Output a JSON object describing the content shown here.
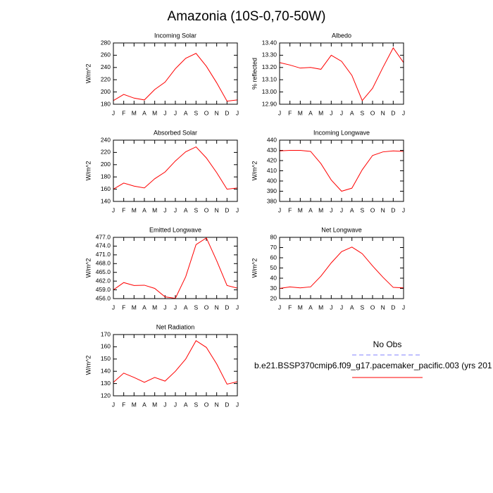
{
  "title": "Amazonia (10S-0,70-50W)",
  "legend": [
    {
      "label": "No Obs",
      "color": "#8080ff",
      "dashed": true
    },
    {
      "label": "b.e21.BSSP370cmip6.f09_g17.pacemaker_pacific.003 (yrs 201",
      "color": "#ff0000",
      "dashed": false
    }
  ],
  "chart_data": [
    {
      "type": "line",
      "title": "Incoming Solar",
      "ylabel": "W/m^2",
      "color": "#ff0000",
      "categories": [
        "J",
        "F",
        "M",
        "A",
        "M",
        "J",
        "J",
        "A",
        "S",
        "O",
        "N",
        "D",
        "J"
      ],
      "values": [
        186,
        196,
        190,
        187,
        204,
        216,
        238,
        255,
        263,
        242,
        215,
        185,
        187
      ],
      "ylim": [
        180,
        280
      ],
      "yticks": [
        180,
        200,
        220,
        240,
        260,
        280
      ]
    },
    {
      "type": "line",
      "title": "Albedo",
      "ylabel": "% reflected",
      "color": "#ff0000",
      "categories": [
        "J",
        "F",
        "M",
        "A",
        "M",
        "J",
        "J",
        "A",
        "S",
        "O",
        "N",
        "D",
        "J"
      ],
      "values": [
        13.24,
        13.22,
        13.195,
        13.2,
        13.185,
        13.3,
        13.25,
        13.135,
        12.93,
        13.03,
        13.2,
        13.36,
        13.24
      ],
      "ylim": [
        12.9,
        13.4
      ],
      "yticks": [
        {
          "value": 12.9,
          "label": "12.90"
        },
        {
          "value": 13.0,
          "label": "13.00"
        },
        {
          "value": 13.1,
          "label": "13.10"
        },
        {
          "value": 13.2,
          "label": "13.20"
        },
        {
          "value": 13.3,
          "label": "13.30"
        },
        {
          "value": 13.4,
          "label": "13.40"
        }
      ]
    },
    {
      "type": "line",
      "title": "Absorbed Solar",
      "ylabel": "W/m^2",
      "color": "#ff0000",
      "categories": [
        "J",
        "F",
        "M",
        "A",
        "M",
        "J",
        "J",
        "A",
        "S",
        "O",
        "N",
        "D",
        "J"
      ],
      "values": [
        160,
        170,
        165,
        162,
        177,
        188,
        206,
        221,
        229,
        211,
        187,
        160,
        162
      ],
      "ylim": [
        140,
        240
      ],
      "yticks": [
        140,
        160,
        180,
        200,
        220,
        240
      ]
    },
    {
      "type": "line",
      "title": "Incoming Longwave",
      "ylabel": "W/m^2",
      "color": "#ff0000",
      "categories": [
        "J",
        "F",
        "M",
        "A",
        "M",
        "J",
        "J",
        "A",
        "S",
        "O",
        "N",
        "D",
        "J"
      ],
      "values": [
        429.5,
        430,
        430,
        429,
        417,
        401,
        390,
        393,
        411,
        425,
        428.5,
        429.5,
        429
      ],
      "ylim": [
        380,
        440
      ],
      "yticks": [
        380,
        390,
        400,
        410,
        420,
        430,
        440
      ]
    },
    {
      "type": "line",
      "title": "Emitted Longwave",
      "ylabel": "W/m^2",
      "color": "#ff0000",
      "categories": [
        "J",
        "F",
        "M",
        "A",
        "M",
        "J",
        "J",
        "A",
        "S",
        "O",
        "N",
        "D",
        "J"
      ],
      "values": [
        459.0,
        461.5,
        460.5,
        460.6,
        459.5,
        456.6,
        456.1,
        463.5,
        474.5,
        476.8,
        469,
        460.5,
        459.6
      ],
      "ylim": [
        456,
        477
      ],
      "yticks": [
        {
          "value": 456,
          "label": "456.0"
        },
        {
          "value": 459,
          "label": "459.0"
        },
        {
          "value": 462,
          "label": "462.0"
        },
        {
          "value": 465,
          "label": "465.0"
        },
        {
          "value": 468,
          "label": "468.0"
        },
        {
          "value": 471,
          "label": "471.0"
        },
        {
          "value": 474,
          "label": "474.0"
        },
        {
          "value": 477,
          "label": "477.0"
        }
      ]
    },
    {
      "type": "line",
      "title": "Net Longwave",
      "ylabel": "W/m^2",
      "color": "#ff0000",
      "categories": [
        "J",
        "F",
        "M",
        "A",
        "M",
        "J",
        "J",
        "A",
        "S",
        "O",
        "N",
        "D",
        "J"
      ],
      "values": [
        30,
        31.5,
        30.5,
        31.5,
        42,
        55,
        66,
        70.5,
        64,
        52,
        41,
        31,
        30.5
      ],
      "ylim": [
        20,
        80
      ],
      "yticks": [
        20,
        30,
        40,
        50,
        60,
        70,
        80
      ]
    },
    {
      "type": "line",
      "title": "Net Radiation",
      "ylabel": "W/m^2",
      "color": "#ff0000",
      "categories": [
        "J",
        "F",
        "M",
        "A",
        "M",
        "J",
        "J",
        "A",
        "S",
        "O",
        "N",
        "D",
        "J"
      ],
      "values": [
        131,
        138.5,
        135,
        131,
        135,
        132,
        140,
        150,
        165,
        159.5,
        146,
        129.5,
        131.5
      ],
      "ylim": [
        120,
        170
      ],
      "yticks": [
        120,
        130,
        140,
        150,
        160,
        170
      ]
    }
  ]
}
